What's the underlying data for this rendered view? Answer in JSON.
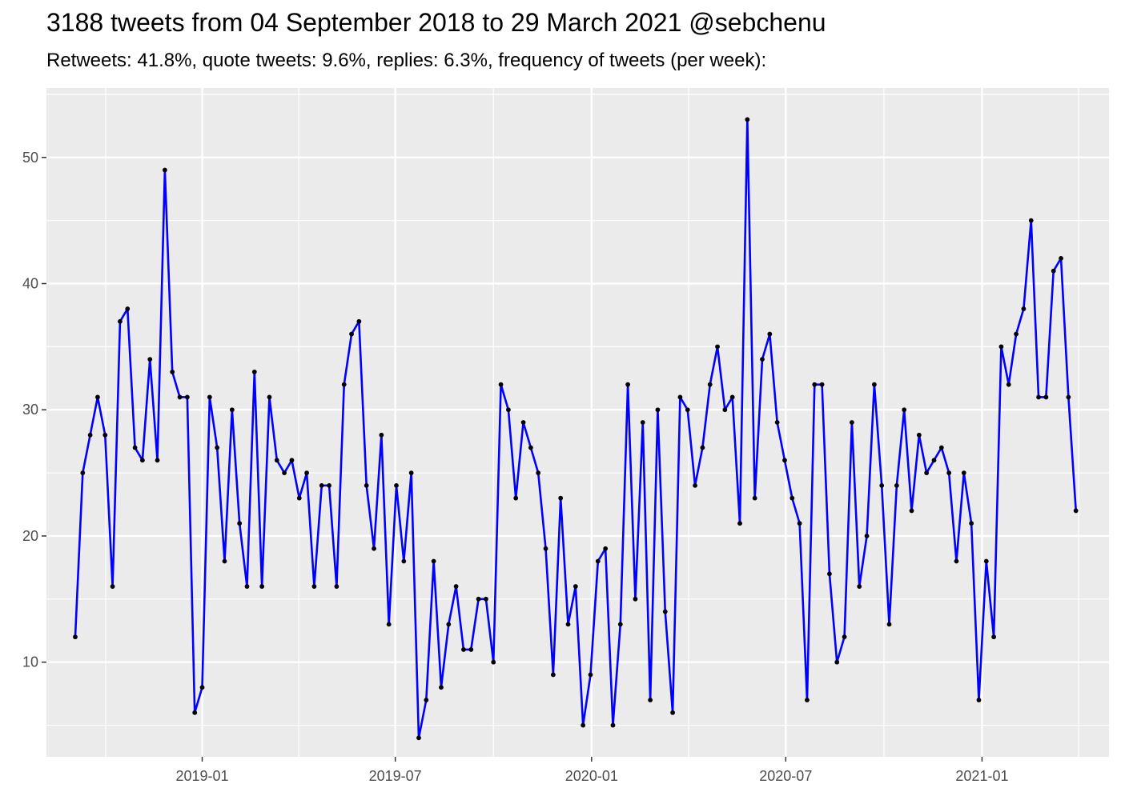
{
  "chart_data": {
    "type": "line",
    "title": "3188 tweets from 04 September 2018 to 29 March 2021 @sebchenu",
    "subtitle": "Retweets: 41.8%, quote tweets: 9.6%, replies: 6.3%, frequency of tweets (per week):",
    "xlabel": "",
    "ylabel": "",
    "x_start": "2018-09-04",
    "x_interval_days": 7,
    "xlim": [
      "2018-08-08",
      "2021-04-30"
    ],
    "ylim": [
      2.5,
      55.5
    ],
    "x_ticks": [
      {
        "date": "2019-01-01",
        "label": "2019-01"
      },
      {
        "date": "2019-07-01",
        "label": "2019-07"
      },
      {
        "date": "2020-01-01",
        "label": "2020-01"
      },
      {
        "date": "2020-07-01",
        "label": "2020-07"
      },
      {
        "date": "2021-01-01",
        "label": "2021-01"
      }
    ],
    "y_ticks": [
      10,
      20,
      30,
      40,
      50
    ],
    "grid": true,
    "line_color": "#0000ff",
    "point_color": "#000000",
    "panel_color": "#ebebeb",
    "values": [
      12,
      25,
      28,
      31,
      28,
      16,
      37,
      38,
      27,
      26,
      34,
      26,
      49,
      33,
      31,
      31,
      6,
      8,
      31,
      27,
      18,
      30,
      21,
      16,
      33,
      16,
      31,
      26,
      25,
      26,
      23,
      25,
      16,
      24,
      24,
      16,
      32,
      36,
      37,
      24,
      19,
      28,
      13,
      24,
      18,
      25,
      4,
      7,
      18,
      8,
      13,
      16,
      11,
      11,
      15,
      15,
      10,
      32,
      30,
      23,
      29,
      27,
      25,
      19,
      9,
      23,
      13,
      16,
      5,
      9,
      18,
      19,
      5,
      13,
      32,
      15,
      29,
      7,
      30,
      14,
      6,
      31,
      30,
      24,
      27,
      32,
      35,
      30,
      31,
      21,
      53,
      23,
      34,
      36,
      29,
      26,
      23,
      21,
      7,
      32,
      32,
      17,
      10,
      12,
      29,
      16,
      20,
      32,
      24,
      13,
      24,
      30,
      22,
      28,
      25,
      26,
      27,
      25,
      18,
      25,
      21,
      7,
      18,
      12,
      35,
      32,
      36,
      38,
      45,
      31,
      31,
      41,
      42,
      31,
      22
    ]
  }
}
